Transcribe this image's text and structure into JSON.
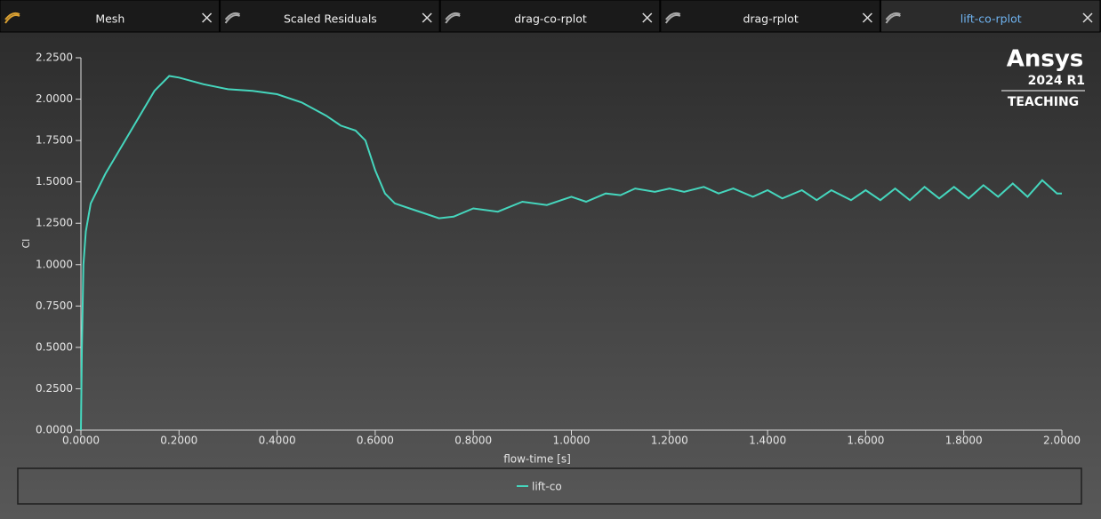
{
  "tabs": [
    {
      "label": "Mesh"
    },
    {
      "label": "Scaled Residuals"
    },
    {
      "label": "drag-co-rplot"
    },
    {
      "label": "drag-rplot"
    },
    {
      "label": "lift-co-rplot",
      "active": true
    }
  ],
  "logo": {
    "brand": "Ansys",
    "version": "2024 R1",
    "edition": "TEACHING"
  },
  "chart_data": {
    "type": "line",
    "xlabel": "flow-time [s]",
    "ylabel": "Cl",
    "xlim": [
      0,
      2
    ],
    "ylim": [
      0,
      2.25
    ],
    "xticks": [
      {
        "value": 0,
        "label": "0.0000"
      },
      {
        "value": 0.2,
        "label": "0.2000"
      },
      {
        "value": 0.4,
        "label": "0.4000"
      },
      {
        "value": 0.6,
        "label": "0.6000"
      },
      {
        "value": 0.8,
        "label": "0.8000"
      },
      {
        "value": 1.0,
        "label": "1.0000"
      },
      {
        "value": 1.2,
        "label": "1.2000"
      },
      {
        "value": 1.4,
        "label": "1.4000"
      },
      {
        "value": 1.6,
        "label": "1.6000"
      },
      {
        "value": 1.8,
        "label": "1.8000"
      },
      {
        "value": 2.0,
        "label": "2.0000"
      }
    ],
    "yticks": [
      {
        "value": 0,
        "label": "0.0000"
      },
      {
        "value": 0.25,
        "label": "0.2500"
      },
      {
        "value": 0.5,
        "label": "0.5000"
      },
      {
        "value": 0.75,
        "label": "0.7500"
      },
      {
        "value": 1.0,
        "label": "1.0000"
      },
      {
        "value": 1.25,
        "label": "1.2500"
      },
      {
        "value": 1.5,
        "label": "1.5000"
      },
      {
        "value": 1.75,
        "label": "1.7500"
      },
      {
        "value": 2.0,
        "label": "2.0000"
      },
      {
        "value": 2.25,
        "label": "2.2500"
      }
    ],
    "x": [
      0,
      0.002,
      0.005,
      0.01,
      0.02,
      0.05,
      0.1,
      0.15,
      0.18,
      0.2,
      0.25,
      0.3,
      0.35,
      0.4,
      0.45,
      0.5,
      0.53,
      0.56,
      0.58,
      0.6,
      0.62,
      0.64,
      0.67,
      0.7,
      0.73,
      0.76,
      0.8,
      0.85,
      0.9,
      0.95,
      1.0,
      1.03,
      1.07,
      1.1,
      1.13,
      1.17,
      1.2,
      1.23,
      1.27,
      1.3,
      1.33,
      1.37,
      1.4,
      1.43,
      1.47,
      1.5,
      1.53,
      1.57,
      1.6,
      1.63,
      1.66,
      1.69,
      1.72,
      1.75,
      1.78,
      1.81,
      1.84,
      1.87,
      1.9,
      1.93,
      1.96,
      1.99,
      2.0
    ],
    "series": [
      {
        "name": "lift-co",
        "color": "#45d6bd",
        "values": [
          0,
          0.5,
          1.0,
          1.2,
          1.37,
          1.55,
          1.8,
          2.05,
          2.14,
          2.13,
          2.09,
          2.06,
          2.05,
          2.03,
          1.98,
          1.9,
          1.84,
          1.81,
          1.75,
          1.57,
          1.43,
          1.37,
          1.34,
          1.31,
          1.28,
          1.29,
          1.34,
          1.32,
          1.38,
          1.36,
          1.41,
          1.38,
          1.43,
          1.42,
          1.46,
          1.44,
          1.46,
          1.44,
          1.47,
          1.43,
          1.46,
          1.41,
          1.45,
          1.4,
          1.45,
          1.39,
          1.45,
          1.39,
          1.45,
          1.39,
          1.46,
          1.39,
          1.47,
          1.4,
          1.47,
          1.4,
          1.48,
          1.41,
          1.49,
          1.41,
          1.51,
          1.43,
          1.43
        ]
      }
    ]
  }
}
